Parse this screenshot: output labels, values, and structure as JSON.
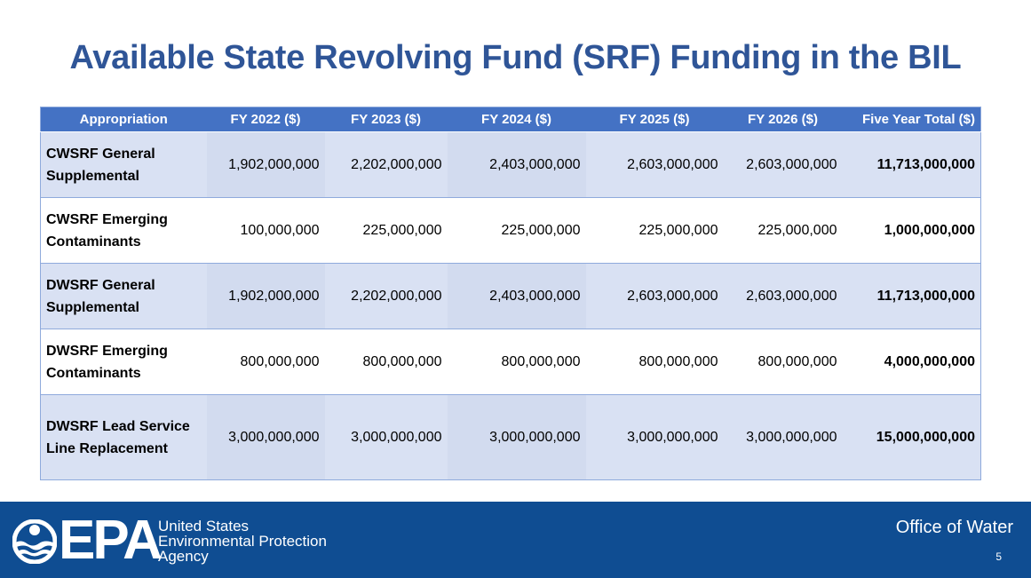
{
  "title": "Available State Revolving Fund (SRF) Funding in the BIL",
  "table": {
    "headers": [
      "Appropriation",
      "FY 2022 ($)",
      "FY 2023 ($)",
      "FY 2024 ($)",
      "FY 2025 ($)",
      "FY 2026 ($)",
      "Five Year Total ($)"
    ],
    "rows": [
      {
        "label": [
          "CWSRF General",
          "Supplemental"
        ],
        "values": [
          "1,902,000,000",
          "2,202,000,000",
          "2,403,000,000",
          "2,603,000,000",
          "2,603,000,000"
        ],
        "total": "11,713,000,000"
      },
      {
        "label": [
          "CWSRF Emerging",
          "Contaminants"
        ],
        "values": [
          "100,000,000",
          "225,000,000",
          "225,000,000",
          "225,000,000",
          "225,000,000"
        ],
        "total": "1,000,000,000"
      },
      {
        "label": [
          "DWSRF General",
          "Supplemental"
        ],
        "values": [
          "1,902,000,000",
          "2,202,000,000",
          "2,403,000,000",
          "2,603,000,000",
          "2,603,000,000"
        ],
        "total": "11,713,000,000"
      },
      {
        "label": [
          "DWSRF Emerging",
          "Contaminants"
        ],
        "values": [
          "800,000,000",
          "800,000,000",
          "800,000,000",
          "800,000,000",
          "800,000,000"
        ],
        "total": "4,000,000,000"
      },
      {
        "label": [
          "DWSRF Lead Service",
          "Line Replacement"
        ],
        "values": [
          "3,000,000,000",
          "3,000,000,000",
          "3,000,000,000",
          "3,000,000,000",
          "3,000,000,000"
        ],
        "total": "15,000,000,000"
      }
    ]
  },
  "footer": {
    "logo_text": "EPA",
    "agency_lines": [
      "United States",
      "Environmental Protection",
      "Agency"
    ],
    "office": "Office of Water",
    "page_number": "5",
    "logo_icon": "epa-seal-icon",
    "background_color": "#0f4d92"
  },
  "colors": {
    "title": "#2f5597",
    "header_bg": "#4472c4",
    "band_bg": "#d9e1f3"
  }
}
